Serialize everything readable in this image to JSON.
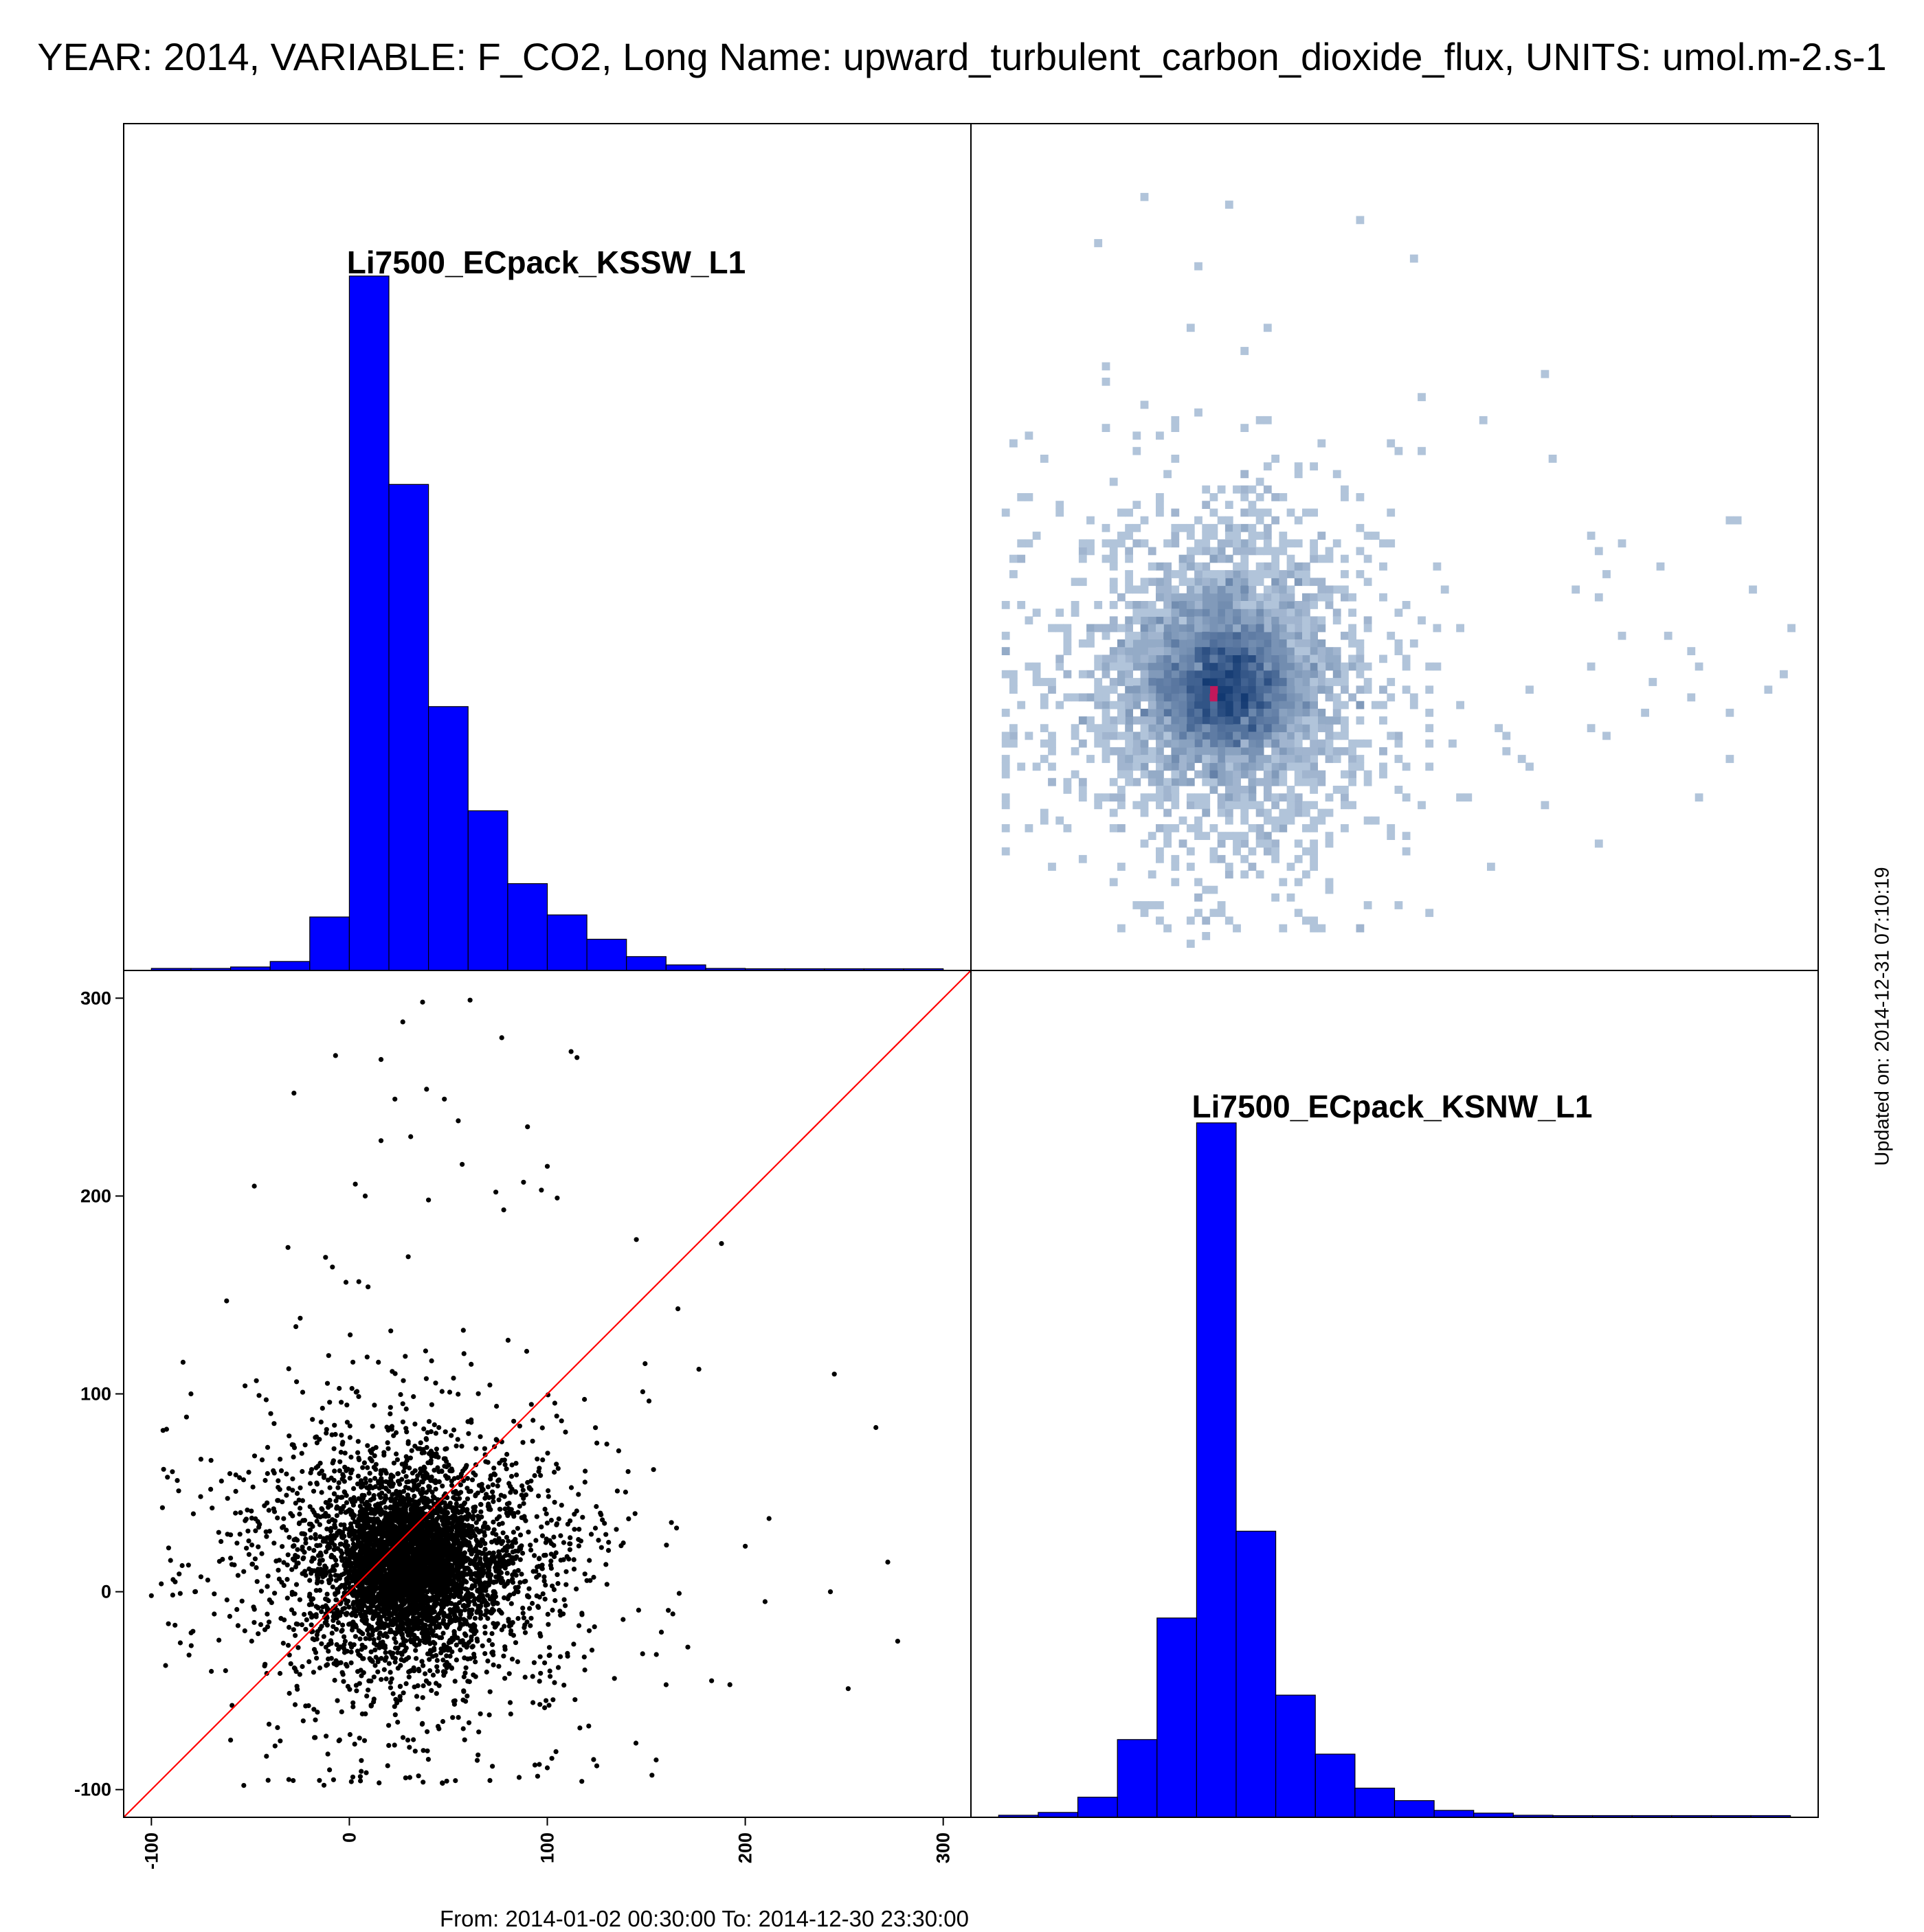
{
  "header": {
    "title": "YEAR: 2014, VARIABLE: F_CO2, Long Name: upward_turbulent_carbon_dioxide_flux, UNITS: umol.m-2.s-1"
  },
  "footer": {
    "range": "From: 2014-01-02 00:30:00 To: 2014-12-30 23:30:00"
  },
  "side": {
    "updated": "Updated on: 2014-12-31 07:10:19"
  },
  "colors": {
    "histogram_fill": "#0000ff",
    "identity_line": "#ff0000",
    "scatter_points": "#000000",
    "density_high": "#08306b",
    "density_low": "#deebf7",
    "density_peak": "#c2185b"
  },
  "chart_data": [
    {
      "type": "bar",
      "panel": "top-left",
      "title": "Li7500_ECpack_KSSW_L1",
      "bin_edges": [
        -100,
        -80,
        -60,
        -40,
        -20,
        0,
        20,
        40,
        60,
        80,
        100,
        120,
        140,
        160,
        180,
        200,
        220,
        240,
        260,
        280,
        300
      ],
      "values": [
        0.003,
        0.003,
        0.005,
        0.013,
        0.077,
        1.0,
        0.7,
        0.38,
        0.23,
        0.125,
        0.08,
        0.045,
        0.02,
        0.008,
        0.003,
        0.001,
        0.0005,
        0.0003,
        0.0002,
        0.0001
      ],
      "value_units": "relative frequency (no axis printed)"
    },
    {
      "type": "heatmap",
      "panel": "top-right",
      "description": "2D density of KSNW vs KSSW",
      "peak": [
        25,
        0
      ],
      "colorscale": [
        "#deebf7",
        "#08306b",
        "#c2185b"
      ]
    },
    {
      "type": "scatter",
      "panel": "bottom-left",
      "xlim": [
        -114,
        314
      ],
      "ylim": [
        -114,
        314
      ],
      "xticks": [
        -100,
        0,
        100,
        200,
        300
      ],
      "yticks": [
        -100,
        0,
        100,
        200,
        300
      ],
      "identity_line": true,
      "cluster_center": [
        25,
        15
      ],
      "outliers": [
        [
          -84,
          116
        ],
        [
          -80,
          100
        ],
        [
          -75,
          67
        ],
        [
          -62,
          147
        ],
        [
          -100,
          -2
        ],
        [
          -88,
          5
        ],
        [
          -78,
          0
        ],
        [
          -86,
          9
        ],
        [
          -95,
          4
        ],
        [
          -79,
          -20
        ],
        [
          -81,
          -32
        ],
        [
          -60,
          -75
        ],
        [
          -42,
          97
        ],
        [
          -48,
          205
        ],
        [
          -31,
          174
        ],
        [
          -28,
          252
        ],
        [
          -7,
          271
        ],
        [
          3,
          206
        ],
        [
          8,
          200
        ],
        [
          23,
          249
        ],
        [
          16,
          269
        ],
        [
          27,
          288
        ],
        [
          37,
          298
        ],
        [
          61,
          299
        ],
        [
          77,
          280
        ],
        [
          112,
          273
        ],
        [
          115,
          270
        ],
        [
          39,
          254
        ],
        [
          48,
          249
        ],
        [
          90,
          235
        ],
        [
          55,
          238
        ],
        [
          57,
          216
        ],
        [
          74,
          202
        ],
        [
          78,
          193
        ],
        [
          88,
          207
        ],
        [
          100,
          215
        ],
        [
          97,
          203
        ],
        [
          105,
          199
        ],
        [
          188,
          176
        ],
        [
          145,
          178
        ],
        [
          166,
          143
        ],
        [
          245,
          110
        ],
        [
          266,
          83
        ],
        [
          272,
          15
        ],
        [
          243,
          0
        ],
        [
          277,
          -25
        ],
        [
          252,
          -49
        ],
        [
          212,
          37
        ],
        [
          200,
          23
        ],
        [
          171,
          -28
        ],
        [
          160,
          -47
        ],
        [
          183,
          -45
        ],
        [
          210,
          -5
        ],
        [
          31,
          230
        ],
        [
          16,
          228
        ],
        [
          40,
          198
        ],
        [
          -12,
          169
        ],
        [
          -27,
          134
        ],
        [
          -35,
          67
        ],
        [
          -55,
          40
        ],
        [
          -66,
          30
        ],
        [
          -52,
          22
        ],
        [
          -60,
          17
        ],
        [
          -8,
          -95
        ],
        [
          1,
          -96
        ],
        [
          -10,
          -90
        ],
        [
          125,
          -88
        ],
        [
          155,
          -85
        ],
        [
          100,
          -89
        ]
      ]
    },
    {
      "type": "bar",
      "panel": "bottom-right",
      "title": "Li7500_ECpack_KSNW_L1",
      "bin_edges": [
        -100,
        -80,
        -60,
        -40,
        -20,
        0,
        20,
        40,
        60,
        80,
        100,
        120,
        140,
        160,
        180,
        200,
        220,
        240,
        260,
        280,
        300
      ],
      "values": [
        0.003,
        0.007,
        0.029,
        0.112,
        0.287,
        1.0,
        0.412,
        0.176,
        0.091,
        0.042,
        0.024,
        0.01,
        0.006,
        0.003,
        0.002,
        0.001,
        0.0005,
        0.0003,
        0.0002,
        0.0001
      ],
      "value_units": "relative frequency (no axis printed)"
    }
  ]
}
